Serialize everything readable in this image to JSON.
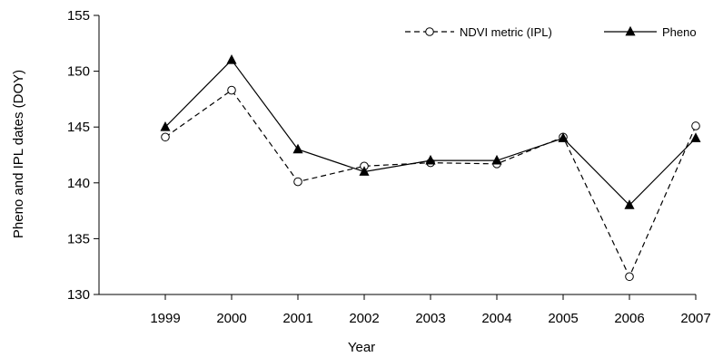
{
  "chart_data": {
    "type": "line",
    "xlabel": "Year",
    "ylabel": "Pheno and IPL dates (DOY)",
    "x": [
      "1999",
      "2000",
      "2001",
      "2002",
      "2003",
      "2004",
      "2005",
      "2006",
      "2007"
    ],
    "xlim": [
      1998,
      2007
    ],
    "ylim": [
      130,
      155
    ],
    "yticks": [
      130,
      135,
      140,
      145,
      150,
      155
    ],
    "grid": false,
    "legend_position": "top-right",
    "series": [
      {
        "name": "NDVI metric (IPL)",
        "values": [
          144.1,
          148.3,
          140.1,
          141.5,
          141.8,
          141.7,
          144.1,
          131.6,
          145.1
        ],
        "line_style": "dashed",
        "marker": "open-circle",
        "color": "#000000"
      },
      {
        "name": "Pheno",
        "values": [
          145,
          151,
          143,
          141,
          142,
          142,
          144,
          138,
          144
        ],
        "line_style": "solid",
        "marker": "filled-triangle",
        "color": "#000000"
      }
    ]
  }
}
